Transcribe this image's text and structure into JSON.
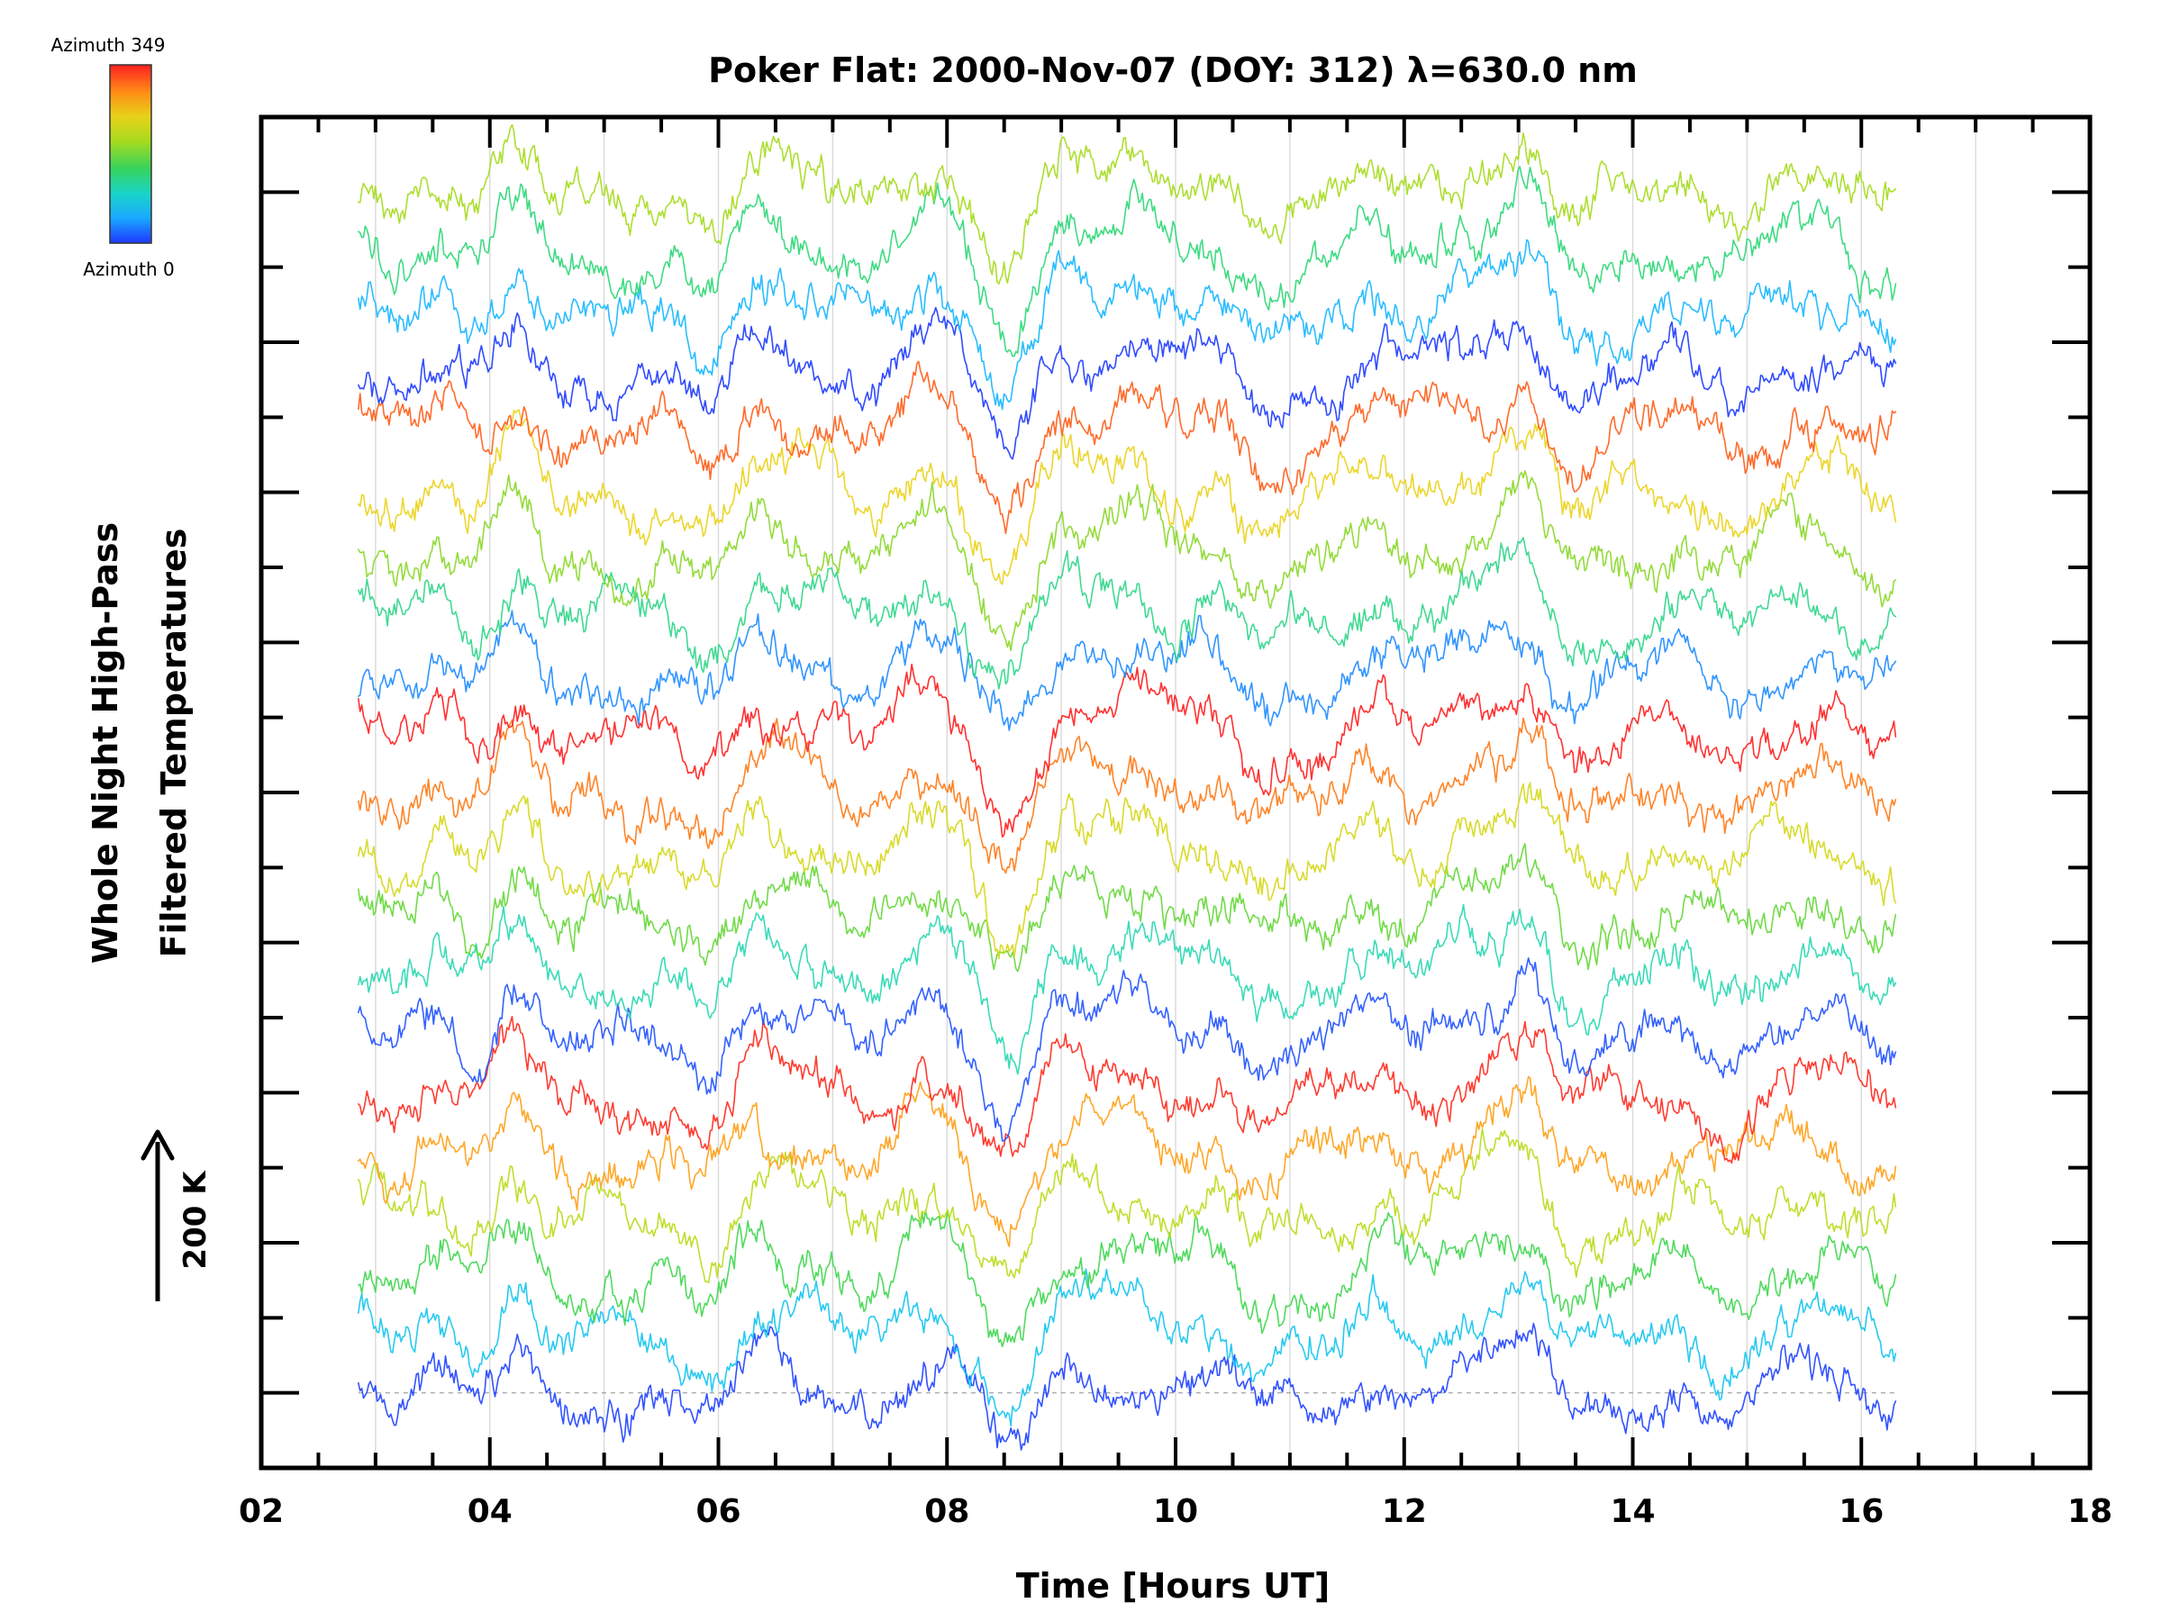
{
  "chart_data": {
    "type": "line",
    "title": "Poker Flat: 2000-Nov-07 (DOY: 312) λ=630.0 nm",
    "xlabel": "Time [Hours UT]",
    "ylabel_line1": "Whole Night High-Pass",
    "ylabel_line2": "Filtered Temperatures",
    "scale_arrow_label": "200 K",
    "xlim": [
      2,
      18
    ],
    "xticks": [
      2,
      4,
      6,
      8,
      10,
      12,
      14,
      16,
      18
    ],
    "xtick_labels": [
      "02",
      "04",
      "06",
      "08",
      "10",
      "12",
      "14",
      "16",
      "18"
    ],
    "minor_x_step": 0.5,
    "ylim": [
      -100,
      1700
    ],
    "y_tick_step": 100,
    "y_units": "K",
    "baseline_value": 0,
    "data_time_range": [
      2.85,
      16.3
    ],
    "grid": {
      "vertical_lines_every_hour": true,
      "vertical_grid_color": "#d9d9d9",
      "baseline_dashed": true
    },
    "colorbar": {
      "label_top": "Azimuth  349",
      "label_bottom": "Azimuth  0",
      "min": 0,
      "max": 349,
      "colors": [
        "#1e38ff",
        "#1aa8ff",
        "#19d5c7",
        "#38d35a",
        "#a6db1f",
        "#e7d21a",
        "#ff8b16",
        "#ff1f1f"
      ]
    },
    "series": [
      {
        "azimuth": 0,
        "offset": 0,
        "color": "#2244ff"
      },
      {
        "azimuth": 64,
        "offset": 80,
        "color": "#16c6ef"
      },
      {
        "azimuth": 128,
        "offset": 160,
        "color": "#42d750"
      },
      {
        "azimuth": 192,
        "offset": 240,
        "color": "#b8dc1b"
      },
      {
        "azimuth": 256,
        "offset": 320,
        "color": "#ff9f16"
      },
      {
        "azimuth": 320,
        "offset": 400,
        "color": "#ff2b1f"
      },
      {
        "azimuth": 20,
        "offset": 480,
        "color": "#2355ff"
      },
      {
        "azimuth": 84,
        "offset": 560,
        "color": "#2ad8b2"
      },
      {
        "azimuth": 148,
        "offset": 640,
        "color": "#66d83a"
      },
      {
        "azimuth": 212,
        "offset": 720,
        "color": "#d5d81a"
      },
      {
        "azimuth": 276,
        "offset": 800,
        "color": "#ff7a16"
      },
      {
        "azimuth": 340,
        "offset": 880,
        "color": "#ff1f1f"
      },
      {
        "azimuth": 40,
        "offset": 960,
        "color": "#1f8cff"
      },
      {
        "azimuth": 104,
        "offset": 1040,
        "color": "#31d68a"
      },
      {
        "azimuth": 168,
        "offset": 1120,
        "color": "#8bd82a"
      },
      {
        "azimuth": 232,
        "offset": 1200,
        "color": "#ead21a"
      },
      {
        "azimuth": 296,
        "offset": 1280,
        "color": "#ff5e19"
      },
      {
        "azimuth": 10,
        "offset": 1360,
        "color": "#1f3dff"
      },
      {
        "azimuth": 60,
        "offset": 1440,
        "color": "#17b7ff"
      },
      {
        "azimuth": 120,
        "offset": 1520,
        "color": "#2fd877"
      },
      {
        "azimuth": 180,
        "offset": 1600,
        "color": "#a6db1f"
      }
    ]
  }
}
